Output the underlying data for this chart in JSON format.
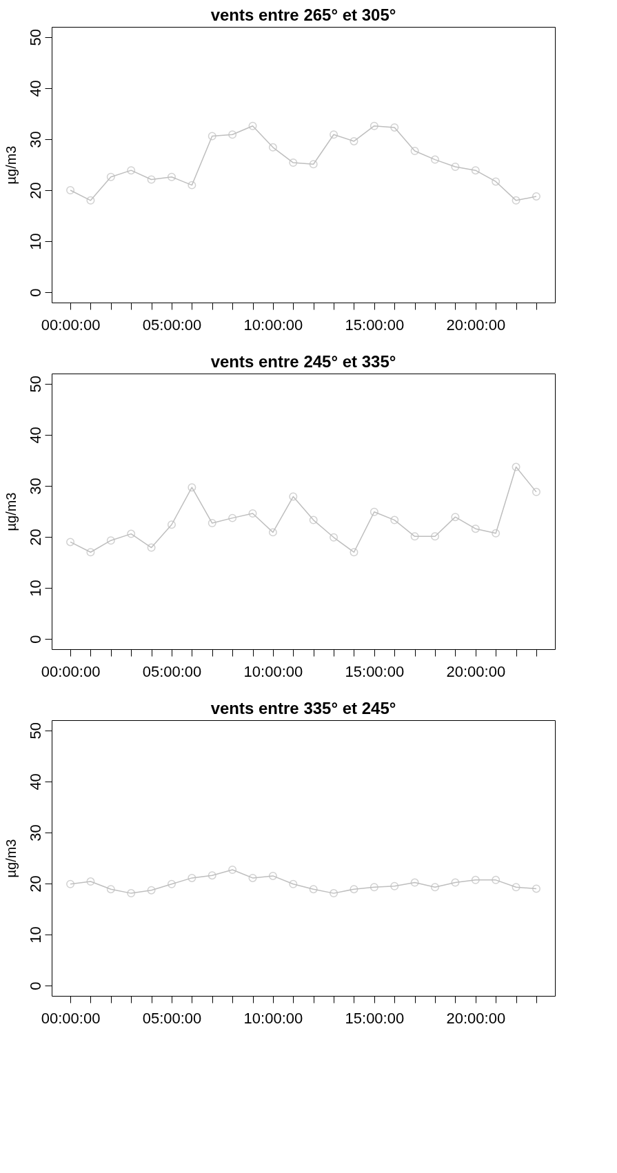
{
  "chart_data": [
    {
      "type": "line",
      "title": "vents entre 265° et 305°",
      "ylabel": "µg/m3",
      "x": [
        0,
        1,
        2,
        3,
        4,
        5,
        6,
        7,
        8,
        9,
        10,
        11,
        12,
        13,
        14,
        15,
        16,
        17,
        18,
        19,
        20,
        21,
        22,
        23
      ],
      "series": [
        {
          "color": "#bebebe",
          "values": [
            20.0,
            18.0,
            22.6,
            23.9,
            22.1,
            22.6,
            21.0,
            30.6,
            30.9,
            32.6,
            28.4,
            25.4,
            25.1,
            30.9,
            29.6,
            32.6,
            32.3,
            27.7,
            26.0,
            24.6,
            23.9,
            21.7,
            18.0,
            18.8
          ]
        }
      ],
      "xlim": [
        -0.92,
        23.92
      ],
      "ylim": [
        -2,
        52
      ],
      "yticks": [
        0,
        10,
        20,
        30,
        40,
        50
      ],
      "xticks": [
        {
          "value": 0,
          "label": "00:00:00"
        },
        {
          "value": 1,
          "label": null
        },
        {
          "value": 2,
          "label": null
        },
        {
          "value": 3,
          "label": null
        },
        {
          "value": 4,
          "label": null
        },
        {
          "value": 5,
          "label": "05:00:00"
        },
        {
          "value": 6,
          "label": null
        },
        {
          "value": 7,
          "label": null
        },
        {
          "value": 8,
          "label": null
        },
        {
          "value": 9,
          "label": null
        },
        {
          "value": 10,
          "label": "10:00:00"
        },
        {
          "value": 11,
          "label": null
        },
        {
          "value": 12,
          "label": null
        },
        {
          "value": 13,
          "label": null
        },
        {
          "value": 14,
          "label": null
        },
        {
          "value": 15,
          "label": "15:00:00"
        },
        {
          "value": 16,
          "label": null
        },
        {
          "value": 17,
          "label": null
        },
        {
          "value": 18,
          "label": null
        },
        {
          "value": 19,
          "label": null
        },
        {
          "value": 20,
          "label": "20:00:00"
        },
        {
          "value": 21,
          "label": null
        },
        {
          "value": 22,
          "label": null
        },
        {
          "value": 23,
          "label": null
        }
      ],
      "marker": "circle",
      "line_style": "solid",
      "grid": false
    },
    {
      "type": "line",
      "title": "vents entre 245° et 335°",
      "ylabel": "µg/m3",
      "x": [
        0,
        1,
        2,
        3,
        4,
        5,
        6,
        7,
        8,
        9,
        10,
        11,
        12,
        13,
        14,
        15,
        16,
        17,
        18,
        19,
        20,
        21,
        22,
        23
      ],
      "series": [
        {
          "color": "#bebebe",
          "values": [
            19.0,
            17.0,
            19.3,
            20.6,
            17.9,
            22.4,
            29.7,
            22.7,
            23.7,
            24.6,
            20.9,
            27.9,
            23.3,
            19.9,
            17.0,
            24.9,
            23.3,
            20.1,
            20.1,
            23.9,
            21.6,
            20.7,
            33.7,
            28.8
          ]
        }
      ],
      "xlim": [
        -0.92,
        23.92
      ],
      "ylim": [
        -2,
        52
      ],
      "yticks": [
        0,
        10,
        20,
        30,
        40,
        50
      ],
      "xticks": [
        {
          "value": 0,
          "label": "00:00:00"
        },
        {
          "value": 1,
          "label": null
        },
        {
          "value": 2,
          "label": null
        },
        {
          "value": 3,
          "label": null
        },
        {
          "value": 4,
          "label": null
        },
        {
          "value": 5,
          "label": "05:00:00"
        },
        {
          "value": 6,
          "label": null
        },
        {
          "value": 7,
          "label": null
        },
        {
          "value": 8,
          "label": null
        },
        {
          "value": 9,
          "label": null
        },
        {
          "value": 10,
          "label": "10:00:00"
        },
        {
          "value": 11,
          "label": null
        },
        {
          "value": 12,
          "label": null
        },
        {
          "value": 13,
          "label": null
        },
        {
          "value": 14,
          "label": null
        },
        {
          "value": 15,
          "label": "15:00:00"
        },
        {
          "value": 16,
          "label": null
        },
        {
          "value": 17,
          "label": null
        },
        {
          "value": 18,
          "label": null
        },
        {
          "value": 19,
          "label": null
        },
        {
          "value": 20,
          "label": "20:00:00"
        },
        {
          "value": 21,
          "label": null
        },
        {
          "value": 22,
          "label": null
        },
        {
          "value": 23,
          "label": null
        }
      ],
      "marker": "circle",
      "line_style": "solid",
      "grid": false
    },
    {
      "type": "line",
      "title": "vents entre 335° et 245°",
      "ylabel": "µg/m3",
      "x": [
        0,
        1,
        2,
        3,
        4,
        5,
        6,
        7,
        8,
        9,
        10,
        11,
        12,
        13,
        14,
        15,
        16,
        17,
        18,
        19,
        20,
        21,
        22,
        23
      ],
      "series": [
        {
          "color": "#bebebe",
          "values": [
            19.9,
            20.4,
            18.9,
            18.1,
            18.7,
            19.9,
            21.1,
            21.6,
            22.7,
            21.1,
            21.5,
            19.9,
            18.9,
            18.1,
            18.9,
            19.3,
            19.5,
            20.2,
            19.3,
            20.2,
            20.7,
            20.7,
            19.3,
            19.0
          ]
        }
      ],
      "xlim": [
        -0.92,
        23.92
      ],
      "ylim": [
        -2,
        52
      ],
      "yticks": [
        0,
        10,
        20,
        30,
        40,
        50
      ],
      "xticks": [
        {
          "value": 0,
          "label": "00:00:00"
        },
        {
          "value": 1,
          "label": null
        },
        {
          "value": 2,
          "label": null
        },
        {
          "value": 3,
          "label": null
        },
        {
          "value": 4,
          "label": null
        },
        {
          "value": 5,
          "label": "05:00:00"
        },
        {
          "value": 6,
          "label": null
        },
        {
          "value": 7,
          "label": null
        },
        {
          "value": 8,
          "label": null
        },
        {
          "value": 9,
          "label": null
        },
        {
          "value": 10,
          "label": "10:00:00"
        },
        {
          "value": 11,
          "label": null
        },
        {
          "value": 12,
          "label": null
        },
        {
          "value": 13,
          "label": null
        },
        {
          "value": 14,
          "label": null
        },
        {
          "value": 15,
          "label": "15:00:00"
        },
        {
          "value": 16,
          "label": null
        },
        {
          "value": 17,
          "label": null
        },
        {
          "value": 18,
          "label": null
        },
        {
          "value": 19,
          "label": null
        },
        {
          "value": 20,
          "label": "20:00:00"
        },
        {
          "value": 21,
          "label": null
        },
        {
          "value": 22,
          "label": null
        },
        {
          "value": 23,
          "label": null
        }
      ],
      "marker": "circle",
      "line_style": "solid",
      "grid": false
    }
  ]
}
